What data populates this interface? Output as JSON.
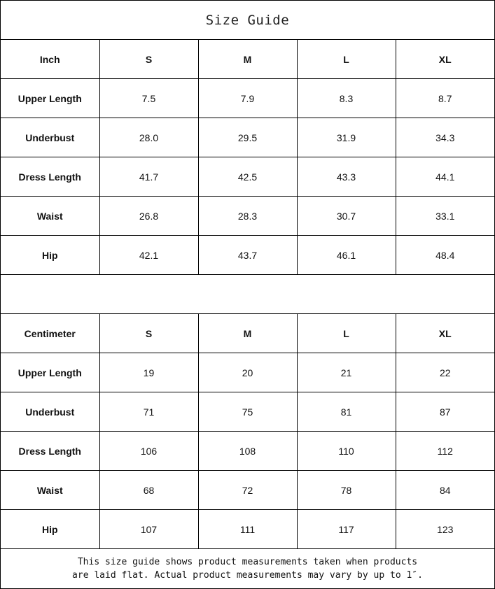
{
  "title": "Size Guide",
  "tables": [
    {
      "unit": "Inch",
      "sizes": [
        "S",
        "M",
        "L",
        "XL"
      ],
      "rows": [
        {
          "label": "Upper Length",
          "values": [
            "7.5",
            "7.9",
            "8.3",
            "8.7"
          ]
        },
        {
          "label": "Underbust",
          "values": [
            "28.0",
            "29.5",
            "31.9",
            "34.3"
          ]
        },
        {
          "label": "Dress Length",
          "values": [
            "41.7",
            "42.5",
            "43.3",
            "44.1"
          ]
        },
        {
          "label": "Waist",
          "values": [
            "26.8",
            "28.3",
            "30.7",
            "33.1"
          ]
        },
        {
          "label": "Hip",
          "values": [
            "42.1",
            "43.7",
            "46.1",
            "48.4"
          ]
        }
      ]
    },
    {
      "unit": "Centimeter",
      "sizes": [
        "S",
        "M",
        "L",
        "XL"
      ],
      "rows": [
        {
          "label": "Upper Length",
          "values": [
            "19",
            "20",
            "21",
            "22"
          ]
        },
        {
          "label": "Underbust",
          "values": [
            "71",
            "75",
            "81",
            "87"
          ]
        },
        {
          "label": "Dress Length",
          "values": [
            "106",
            "108",
            "110",
            "112"
          ]
        },
        {
          "label": "Waist",
          "values": [
            "68",
            "72",
            "78",
            "84"
          ]
        },
        {
          "label": "Hip",
          "values": [
            "107",
            "111",
            "117",
            "123"
          ]
        }
      ]
    }
  ],
  "footer": {
    "line1": "This size guide shows product measurements taken when products",
    "line2": "are laid flat. Actual product measurements may vary by up to 1″."
  }
}
